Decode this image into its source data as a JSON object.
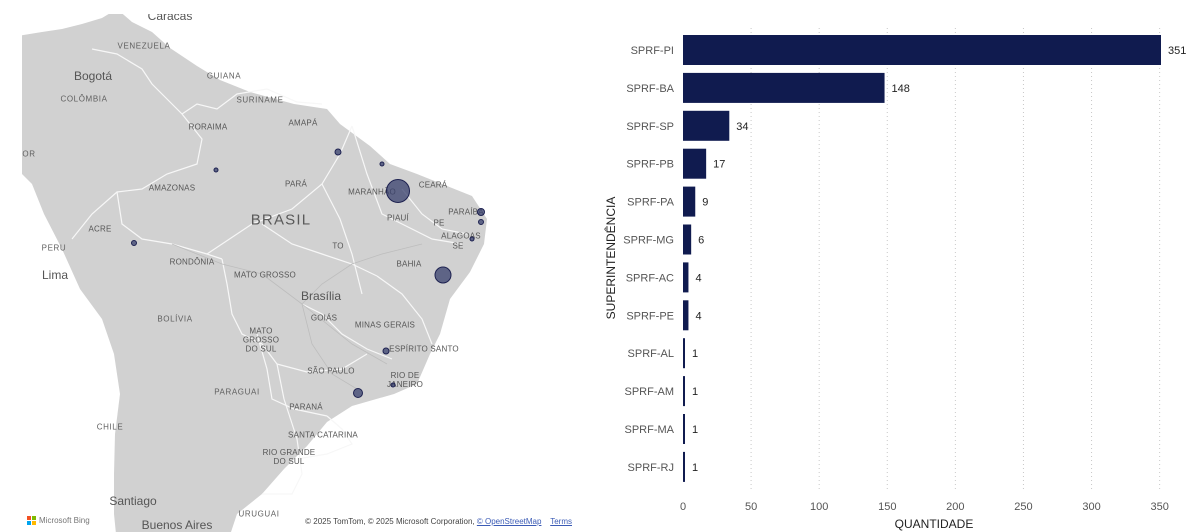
{
  "map": {
    "countries": [
      "VENEZUELA",
      "GUIANA",
      "SURINAME",
      "COLÔMBIA",
      "PERU",
      "BOLÍVIA",
      "PARAGUAI",
      "CHILE",
      "URUGUAI",
      "OR",
      "BRASIL"
    ],
    "cities": [
      "Caracas",
      "Bogotá",
      "Lima",
      "Brasília",
      "Santiago",
      "Buenos Aires"
    ],
    "states": [
      "RORAIMA",
      "AMAPÁ",
      "AMAZONAS",
      "PARÁ",
      "MARANHÃO",
      "CEARÁ",
      "PIAUÍ",
      "PE",
      "PARAÍBA",
      "ALAGOAS",
      "SE",
      "ACRE",
      "TO",
      "RONDÔNIA",
      "MATO GROSSO",
      "BAHIA",
      "GOIÁS",
      "MINAS GERAIS",
      "MATO GROSSO DO SUL",
      "ESPÍRITO SANTO",
      "SÃO PAULO",
      "RIO DE JANEIRO",
      "PARANÁ",
      "SANTA CATARINA",
      "RIO GRANDE DO SUL"
    ],
    "logo_text": "Microsoft Bing",
    "attribution": {
      "prefix": "© 2025 TomTom, © 2025 Microsoft Corporation, ",
      "osm_link": "© OpenStreetMap",
      "terms_link": "Terms"
    },
    "bubble_color": "#373f6c"
  },
  "chart_data": {
    "type": "bar",
    "orientation": "horizontal",
    "categories": [
      "SPRF-PI",
      "SPRF-BA",
      "SPRF-SP",
      "SPRF-PB",
      "SPRF-PA",
      "SPRF-MG",
      "SPRF-AC",
      "SPRF-PE",
      "SPRF-AL",
      "SPRF-AM",
      "SPRF-MA",
      "SPRF-RJ"
    ],
    "values": [
      351,
      148,
      34,
      17,
      9,
      6,
      4,
      4,
      1,
      1,
      1,
      1
    ],
    "xlabel": "QUANTIDADE",
    "ylabel": "SUPERINTENDÊNCIA",
    "xlim": [
      0,
      350
    ],
    "xticks": [
      0,
      50,
      100,
      150,
      200,
      250,
      300,
      350
    ],
    "data_labels": true,
    "grid": "vertical dotted",
    "bar_color": "#101b4f"
  }
}
